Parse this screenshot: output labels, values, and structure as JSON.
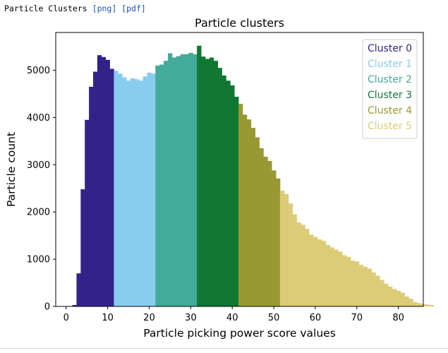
{
  "header": {
    "title": "Particle Clusters",
    "link_png": "[png]",
    "link_pdf": "[pdf]"
  },
  "chart_data": {
    "type": "bar",
    "title": "Particle clusters",
    "xlabel": "Particle picking power score values",
    "ylabel": "Particle count",
    "xlim": [
      -2.5,
      86
    ],
    "ylim": [
      0,
      5800
    ],
    "x_ticks": [
      0,
      10,
      20,
      30,
      40,
      50,
      60,
      70,
      80
    ],
    "y_ticks": [
      0,
      1000,
      2000,
      3000,
      4000,
      5000
    ],
    "grid": false,
    "legend_position": "top-right",
    "bin_width": 1,
    "series": [
      {
        "name": "Cluster 0",
        "color": "#332288",
        "x_start": 1.5,
        "values": [
          30,
          700,
          2480,
          3950,
          4650,
          4970,
          5320,
          5280,
          5220,
          5030
        ]
      },
      {
        "name": "Cluster 1",
        "color": "#88ccee",
        "x_start": 11.5,
        "values": [
          4990,
          4930,
          4850,
          4780,
          4830,
          4810,
          4780,
          4870,
          4950,
          4930
        ]
      },
      {
        "name": "Cluster 2",
        "color": "#44aa99",
        "x_start": 21.5,
        "values": [
          5100,
          5120,
          5200,
          5360,
          5270,
          5300,
          5340,
          5340,
          5370,
          5340
        ]
      },
      {
        "name": "Cluster 3",
        "color": "#117733",
        "x_start": 31.5,
        "values": [
          5520,
          5290,
          5240,
          5270,
          5200,
          5050,
          4890,
          4780,
          4680,
          4440
        ]
      },
      {
        "name": "Cluster 4",
        "color": "#999933",
        "x_start": 41.5,
        "values": [
          4290,
          4060,
          3960,
          3780,
          3580,
          3350,
          3170,
          3080,
          2880,
          2710
        ]
      },
      {
        "name": "Cluster 5",
        "color": "#ddcc77",
        "x_start": 51.5,
        "values": [
          2450,
          2380,
          2180,
          1950,
          1780,
          1730,
          1640,
          1520,
          1470,
          1420,
          1390,
          1300,
          1250,
          1200,
          1160,
          1080,
          1050,
          970,
          950,
          880,
          840,
          800,
          720,
          650,
          560,
          480,
          420,
          370,
          330,
          290,
          210,
          160,
          90,
          70,
          50,
          40,
          30
        ]
      }
    ]
  }
}
